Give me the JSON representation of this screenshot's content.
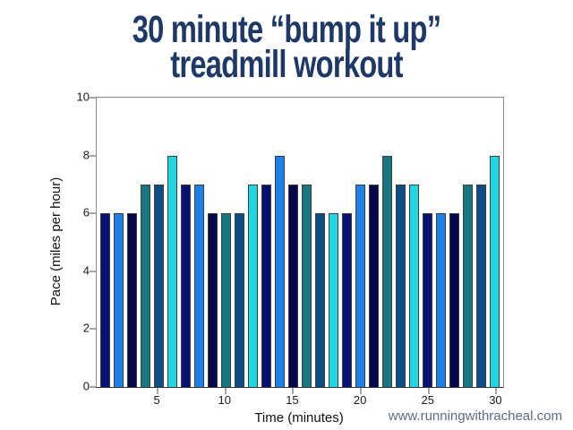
{
  "title": {
    "line1": "30 minute “bump it up”",
    "line2": "treadmill workout",
    "color": "#1e3968"
  },
  "watermark": {
    "text": "www.runningwithracheal.com",
    "color": "#5b6b88"
  },
  "chart_data": {
    "type": "bar",
    "title": "30 minute “bump it up” treadmill workout",
    "xlabel": "Time (minutes)",
    "ylabel": "Pace (miles per hour)",
    "x": [
      1,
      2,
      3,
      4,
      5,
      6,
      7,
      8,
      9,
      10,
      11,
      12,
      13,
      14,
      15,
      16,
      17,
      18,
      19,
      20,
      21,
      22,
      23,
      24,
      25,
      26,
      27,
      28,
      29,
      30
    ],
    "values": [
      6,
      6,
      6,
      7,
      7,
      8,
      7,
      7,
      6,
      6,
      6,
      7,
      7,
      8,
      7,
      7,
      6,
      6,
      6,
      7,
      7,
      8,
      7,
      7,
      6,
      6,
      6,
      7,
      7,
      8
    ],
    "ylim": [
      0,
      10
    ],
    "yticks": [
      0,
      2,
      4,
      6,
      8,
      10
    ],
    "xticks": [
      5,
      10,
      15,
      20,
      25,
      30
    ],
    "bar_colors_cycle": [
      "#0a1172",
      "#1e81ea",
      "#05094a",
      "#17767f",
      "#0d4c85",
      "#1fd7e0"
    ],
    "bar_border_color": "#3d3d3d",
    "axis_frame_color": "#8a8a8a",
    "baseline_color": "#333333",
    "tick_color": "#4d4d4d",
    "tick_label_color": "#1a1a1a",
    "grid": false,
    "legend": "none"
  }
}
